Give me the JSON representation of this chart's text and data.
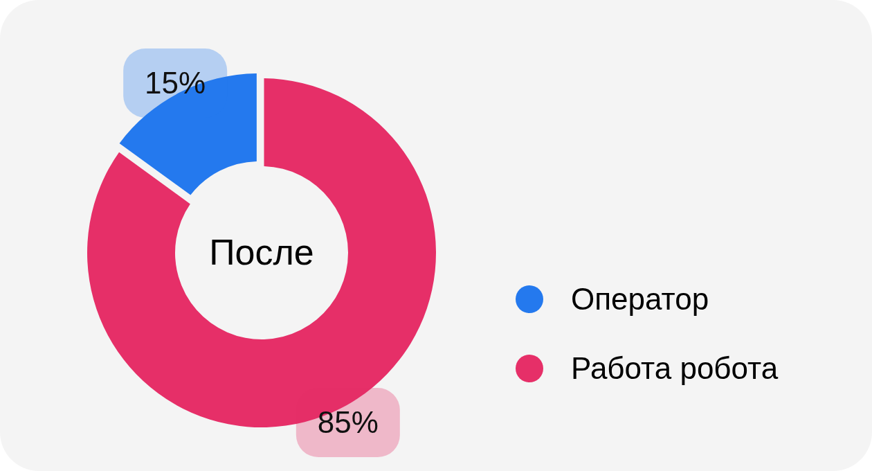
{
  "chart_data": {
    "type": "donut",
    "title": "После",
    "categories": [
      "Оператор",
      "Работа робота"
    ],
    "values": [
      15,
      85
    ],
    "colors": [
      "#2479ee",
      "#e62f68"
    ],
    "value_labels": [
      "15%",
      "85%"
    ],
    "legend": "right"
  }
}
